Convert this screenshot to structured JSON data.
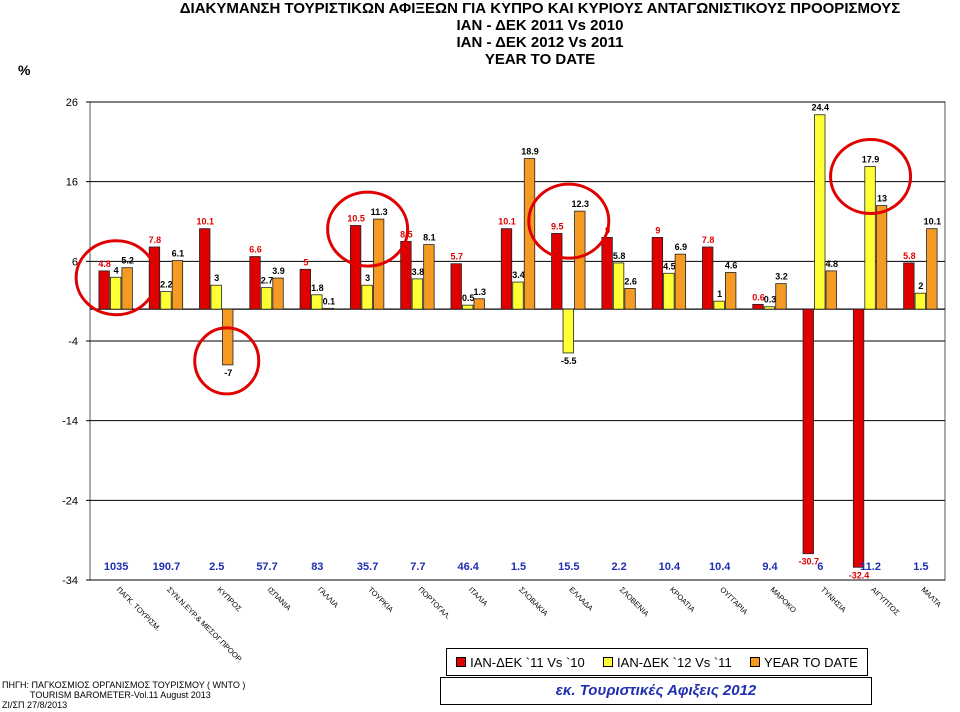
{
  "title_lines": [
    "ΔΙΑΚΥΜΑΝΣΗ ΤΟΥΡΙΣΤΙΚΩΝ ΑΦΙΞΕΩΝ ΓΙΑ ΚΥΠΡΟ ΚΑΙ ΚΥΡΙΟΥΣ ΑΝΤΑΓΩΝΙΣΤΙΚΟΥΣ ΠΡΟΟΡΙΣΜΟΥΣ",
    "ΙΑΝ - ΔΕΚ 2011 Vs 2010",
    "ΙΑΝ - ΔΕΚ 2012 Vs 2011",
    "YEAR TO DATE"
  ],
  "unit_label": "%",
  "source_lines": [
    "ΠΗΓΗ: ΠΑΓΚΟΣΜΙΟΣ ΟΡΓΑΝΙΣΜΟΣ ΤΟΥΡΙΣΜΟΥ ( WNTO )",
    "TOURISM BAROMETER-Vol.11 August 2013",
    "ΖΙ/ΣΠ 27/8/2013"
  ],
  "arrivals_caption": "εκ. Τουριστικές Αφιξεις 2012",
  "colors": {
    "series_1": "#e00000",
    "series_2": "#ffff33",
    "series_3": "#f59a23",
    "arrivals_text": "#1f2fb0",
    "value_label_series_1": "#e00000",
    "highlight_circle": "#e00000"
  },
  "chart_data": {
    "type": "bar",
    "ylim": [
      -34,
      26
    ],
    "y_ticks": [
      26,
      16,
      6,
      -4,
      -14,
      -24,
      -34
    ],
    "grid": true,
    "legend_position": "bottom",
    "categories": [
      "ΠΑΓΚ. ΤΟΥΡΙΣΜ.",
      "ΣΥΝ.Ν.ΕΥΡ.& ΜΕΣΟΓ.ΠΡΟΟΡ.",
      "ΚΥΠΡΟΣ",
      "ΙΣΠΑΝΙΑ",
      "ΓΑΛΛΙΑ",
      "ΤΟΥΡΚΙΑ",
      "ΠΟΡΤΟΓΑΛ.",
      "ΙΤΑΛΙΑ",
      "ΣΛΟΒΑΚΙΑ",
      "ΕΛΛΑΔΑ",
      "ΣΛΟΒΕΝΙΑ",
      "ΚΡΟΑΤΙΑ",
      "ΟΥΓΓΑΡΙΑ",
      "ΜΑΡΟΚΟ",
      "ΤΥΝΗΣΙΑ",
      "ΑΙΓΥΠΤΟΣ",
      "ΜΑΛΤΑ"
    ],
    "series": [
      {
        "name": "ΙΑΝ-ΔΕΚ `11 Vs `10",
        "values": [
          4.8,
          7.8,
          10.1,
          6.6,
          5,
          10.5,
          8.5,
          5.7,
          10.1,
          9.5,
          9,
          9,
          7.8,
          0.6,
          -30.7,
          -32.4,
          5.8
        ]
      },
      {
        "name": "ΙΑΝ-ΔΕΚ `12 Vs `11",
        "values": [
          4.0,
          2.2,
          3,
          2.7,
          1.8,
          3,
          3.8,
          0.5,
          3.4,
          -5.5,
          5.8,
          4.5,
          1,
          0.3,
          24.4,
          17.9,
          2
        ]
      },
      {
        "name": "YEAR TO DATE",
        "values": [
          5.2,
          6.1,
          -7,
          3.9,
          0.1,
          11.3,
          8.1,
          1.3,
          18.9,
          12.3,
          2.6,
          6.9,
          4.6,
          3.2,
          4.8,
          13,
          10.1
        ]
      }
    ],
    "arrivals_2012": [
      "1035",
      "190.7",
      "2.5",
      "57.7",
      "83",
      "35.7",
      "7.7",
      "46.4",
      "1.5",
      "15.5",
      "2.2",
      "10.4",
      "10.4",
      "9.4",
      "6",
      "11.2",
      "1.5"
    ]
  },
  "highlight_circles": [
    {
      "category": "ΠΑΓΚ. ΤΟΥΡΙΣΜ."
    },
    {
      "category": "ΚΥΠΡΟΣ"
    },
    {
      "category": "ΤΟΥΡΚΙΑ"
    },
    {
      "category": "ΕΛΛΑΔΑ"
    },
    {
      "category": "ΑΙΓΥΠΤΟΣ"
    }
  ]
}
